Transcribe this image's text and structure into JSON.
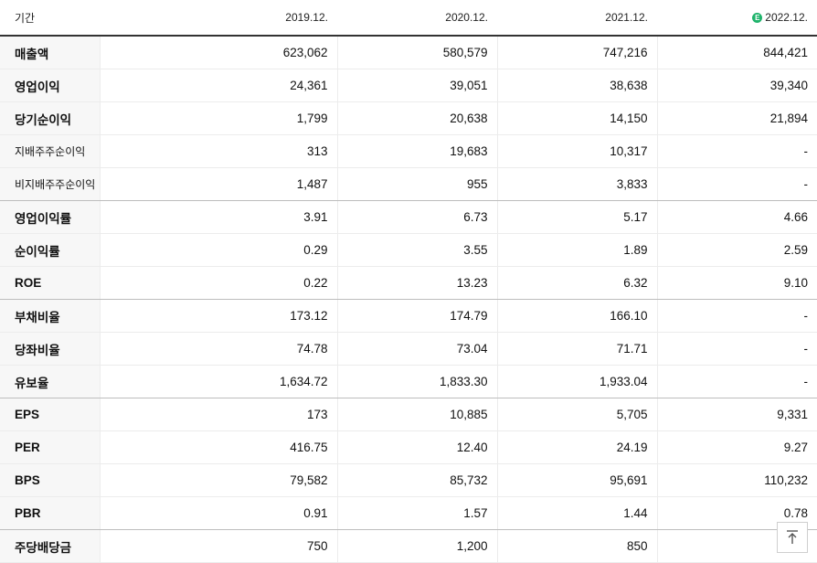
{
  "table": {
    "header": {
      "label": "기간",
      "periods": [
        "2019.12.",
        "2020.12.",
        "2021.12.",
        "2022.12."
      ],
      "estimate_icon": "estimate-icon",
      "estimate_icon_glyph": "E"
    },
    "rows": [
      {
        "label": "매출액",
        "values": [
          "623,062",
          "580,579",
          "747,216",
          "844,421"
        ]
      },
      {
        "label": "영업이익",
        "values": [
          "24,361",
          "39,051",
          "38,638",
          "39,340"
        ]
      },
      {
        "label": "당기순이익",
        "values": [
          "1,799",
          "20,638",
          "14,150",
          "21,894"
        ]
      },
      {
        "label": "지배주주순이익",
        "values": [
          "313",
          "19,683",
          "10,317",
          "-"
        ]
      },
      {
        "label": "비지배주주순이익",
        "values": [
          "1,487",
          "955",
          "3,833",
          "-"
        ]
      },
      {
        "label": "영업이익률",
        "values": [
          "3.91",
          "6.73",
          "5.17",
          "4.66"
        ]
      },
      {
        "label": "순이익률",
        "values": [
          "0.29",
          "3.55",
          "1.89",
          "2.59"
        ]
      },
      {
        "label": "ROE",
        "values": [
          "0.22",
          "13.23",
          "6.32",
          "9.10"
        ]
      },
      {
        "label": "부채비율",
        "values": [
          "173.12",
          "174.79",
          "166.10",
          "-"
        ]
      },
      {
        "label": "당좌비율",
        "values": [
          "74.78",
          "73.04",
          "71.71",
          "-"
        ]
      },
      {
        "label": "유보율",
        "values": [
          "1,634.72",
          "1,833.30",
          "1,933.04",
          "-"
        ]
      },
      {
        "label": "EPS",
        "values": [
          "173",
          "10,885",
          "5,705",
          "9,331"
        ]
      },
      {
        "label": "PER",
        "values": [
          "416.75",
          "12.40",
          "24.19",
          "9.27"
        ]
      },
      {
        "label": "BPS",
        "values": [
          "79,582",
          "85,732",
          "95,691",
          "110,232"
        ]
      },
      {
        "label": "PBR",
        "values": [
          "0.91",
          "1.57",
          "1.44",
          "0.78"
        ]
      },
      {
        "label": "주당배당금",
        "values": [
          "750",
          "1,200",
          "850",
          "6"
        ]
      }
    ]
  },
  "scroll_top_button": {
    "icon": "arrow-up-to-top-icon"
  },
  "colors": {
    "estimate_badge": "#1fb36b",
    "label_bg": "#f7f7f7",
    "header_rule": "#333333"
  }
}
